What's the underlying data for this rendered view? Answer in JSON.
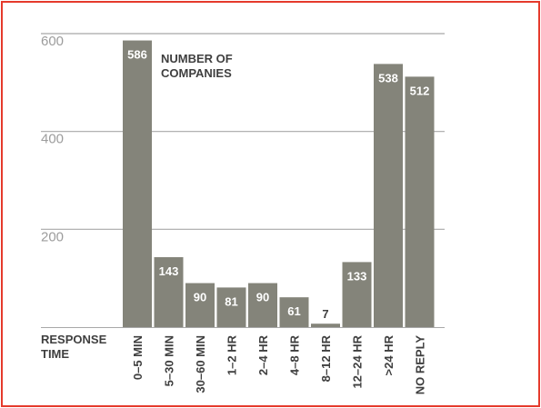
{
  "chart_data": {
    "type": "bar",
    "categories": [
      "0–5 MIN",
      "5–30 MIN",
      "30–60 MIN",
      "1–2 HR",
      "2–4 HR",
      "4–8 HR",
      "8–12 HR",
      "12–24 HR",
      ">24 HR",
      "NO REPLY"
    ],
    "values": [
      586,
      143,
      90,
      81,
      90,
      61,
      7,
      133,
      538,
      512
    ],
    "y_ticks": [
      200,
      400,
      600
    ],
    "ylim": [
      0,
      600
    ],
    "series_label_lines": [
      "NUMBER OF",
      "COMPANIES"
    ],
    "xlabel_lines": [
      "RESPONSE",
      "TIME"
    ],
    "grid": true,
    "colors": {
      "bar": "#84847a",
      "bar_text": "#ffffff",
      "grid": "#a8a8a8",
      "axis_text": "#9c9c9c",
      "label_text": "#3f3f3f",
      "border": "#e53a2c"
    }
  }
}
